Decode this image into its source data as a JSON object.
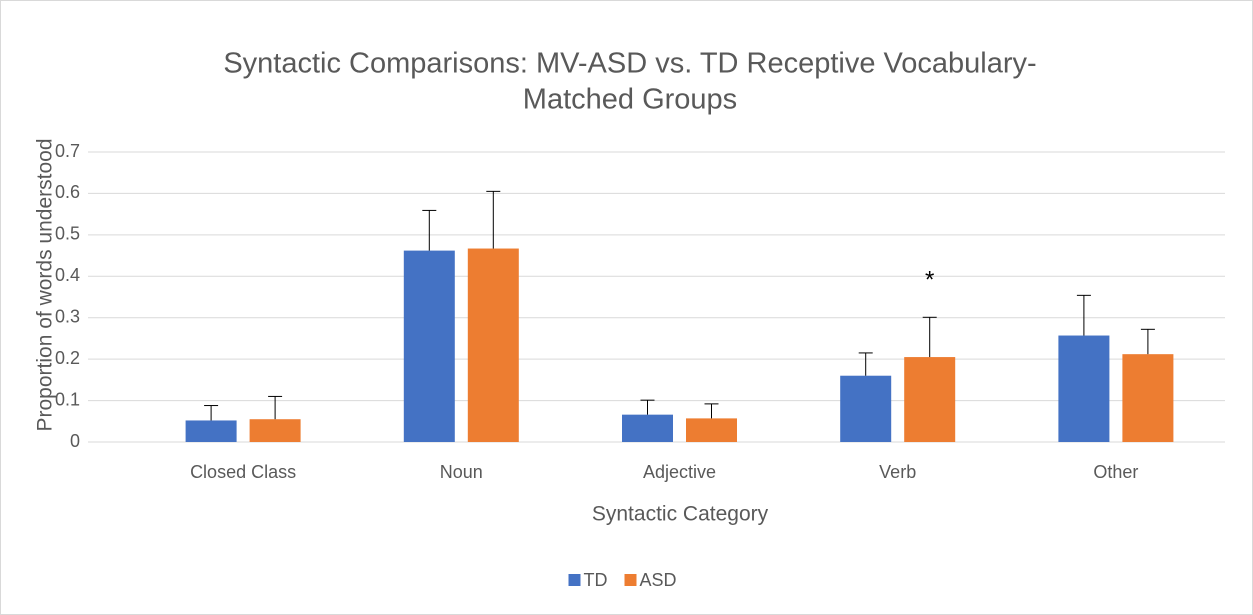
{
  "chart_data": {
    "type": "bar",
    "title": [
      "Syntactic Comparisons: MV-ASD vs. TD Receptive Vocabulary-",
      "Matched Groups"
    ],
    "x_label": "Syntactic Category",
    "y_label": "Proportion of words understood",
    "categories": [
      "Closed Class",
      "Noun",
      "Adjective",
      "Verb",
      "Other"
    ],
    "series": [
      {
        "name": "TD",
        "color": "#4472c4",
        "values": [
          0.052,
          0.462,
          0.066,
          0.16,
          0.257
        ],
        "errors": [
          0.036,
          0.097,
          0.035,
          0.055,
          0.097
        ]
      },
      {
        "name": "ASD",
        "color": "#ed7d31",
        "values": [
          0.055,
          0.467,
          0.057,
          0.205,
          0.212
        ],
        "errors": [
          0.055,
          0.138,
          0.035,
          0.096,
          0.06
        ]
      }
    ],
    "annotations": [
      {
        "text": "*",
        "category": 3,
        "series": 1
      }
    ],
    "ylim": [
      0,
      0.7
    ],
    "yticks": [
      0,
      0.1,
      0.2,
      0.3,
      0.4,
      0.5,
      0.6,
      0.7
    ],
    "grid": true,
    "legend": "bottom"
  }
}
